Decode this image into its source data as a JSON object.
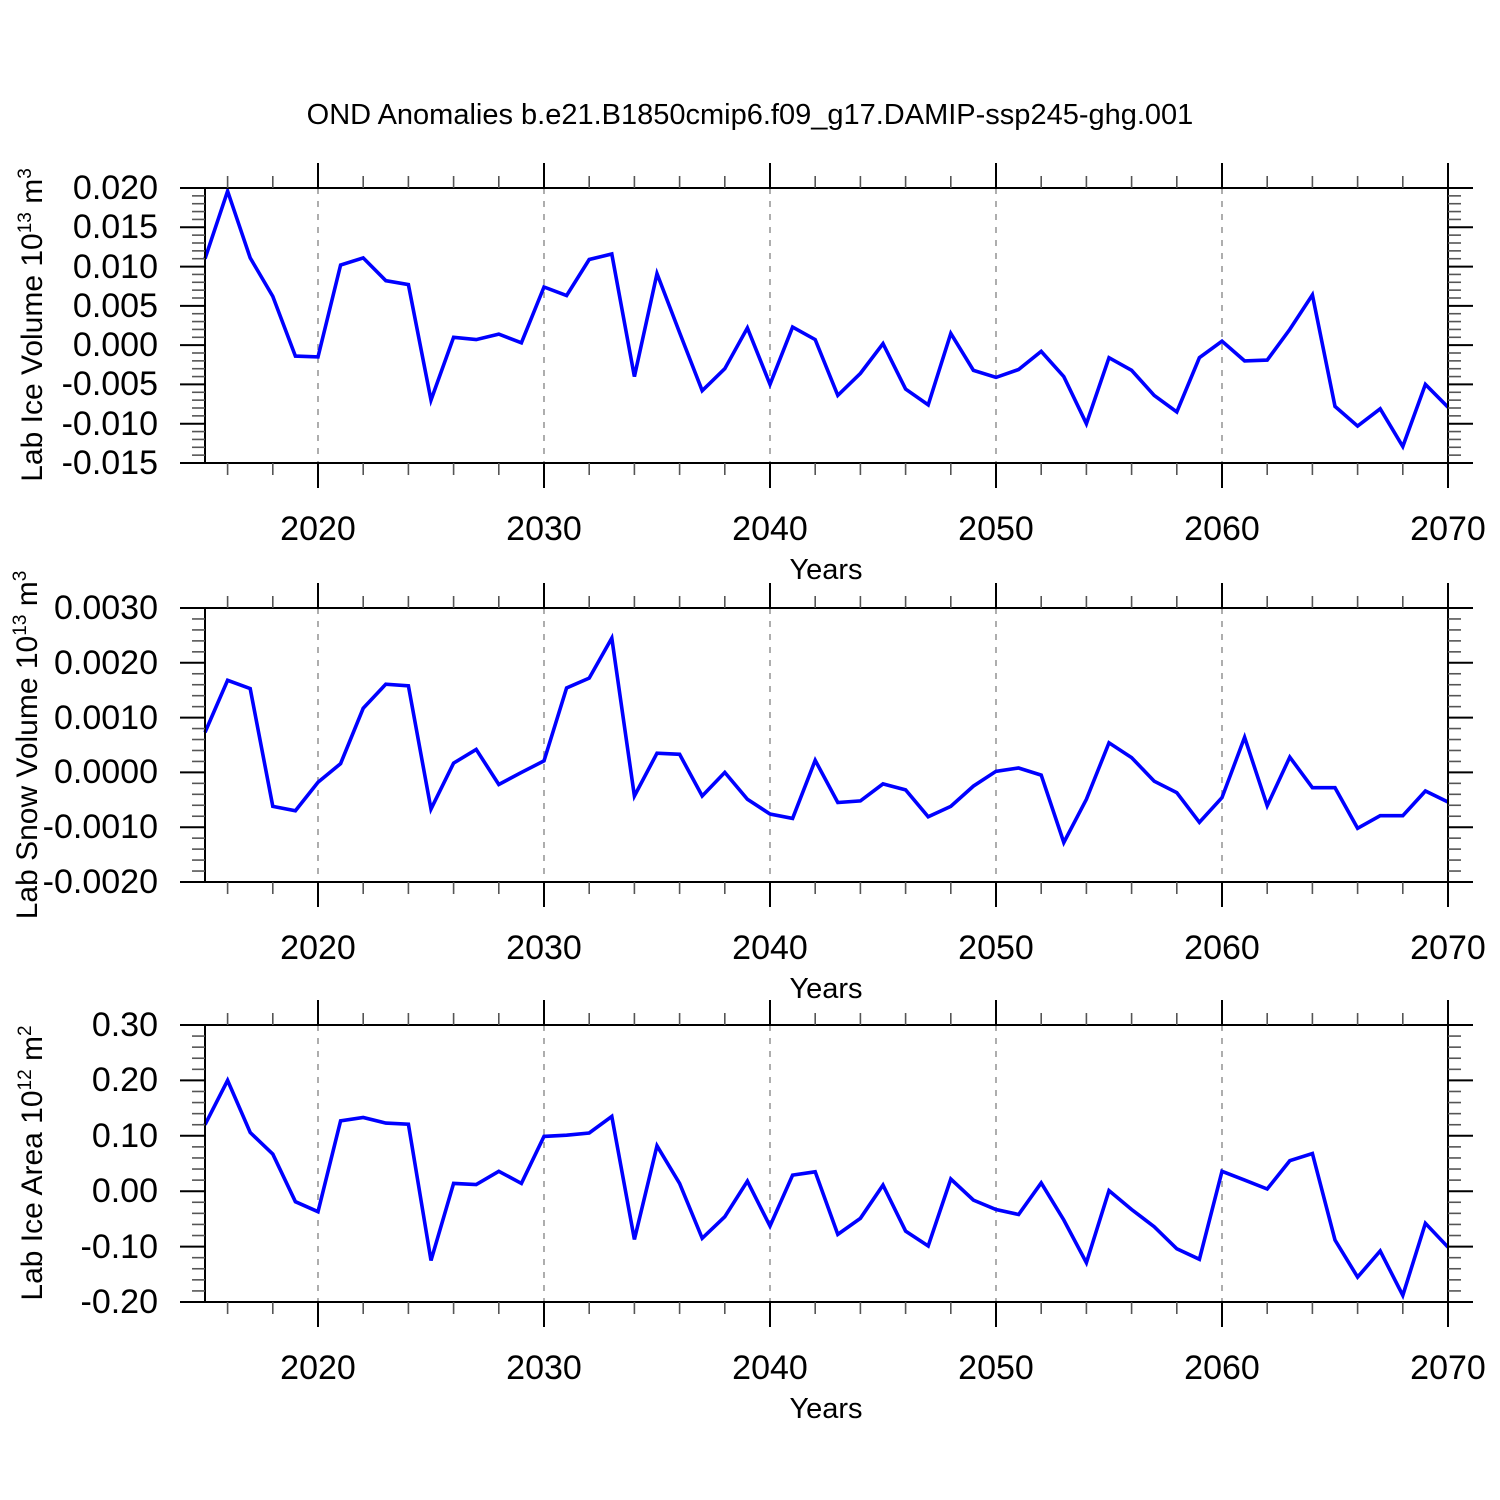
{
  "title": "OND Anomalies b.e21.B1850cmip6.f09_g17.DAMIP-ssp245-ghg.001",
  "xlabel": "Years",
  "line_color": "#0000ff",
  "grid_color": "#999999",
  "axis_color": "#000000",
  "years": [
    2015,
    2016,
    2017,
    2018,
    2019,
    2020,
    2021,
    2022,
    2023,
    2024,
    2025,
    2026,
    2027,
    2028,
    2029,
    2030,
    2031,
    2032,
    2033,
    2034,
    2035,
    2036,
    2037,
    2038,
    2039,
    2040,
    2041,
    2042,
    2043,
    2044,
    2045,
    2046,
    2047,
    2048,
    2049,
    2050,
    2051,
    2052,
    2053,
    2054,
    2055,
    2056,
    2057,
    2058,
    2059,
    2060,
    2061,
    2062,
    2063,
    2064,
    2065,
    2066,
    2067,
    2068,
    2069,
    2070
  ],
  "x_axis": {
    "range": [
      2015,
      2070
    ],
    "major_ticks": [
      2020,
      2030,
      2040,
      2050,
      2060,
      2070
    ],
    "major_tick_labels": [
      "2020",
      "2030",
      "2040",
      "2050",
      "2060",
      "2070"
    ],
    "minor_tick_step": 2,
    "gridlines_at": [
      2020,
      2030,
      2040,
      2050,
      2060
    ],
    "grid_style": "dashed"
  },
  "chart_data": [
    {
      "type": "line",
      "name": "lab-ice-volume",
      "ylabel": {
        "base": "Lab Ice Volume 10",
        "exponent": "13",
        "unit": " m",
        "unit_exponent": "3"
      },
      "ylim": [
        -0.015,
        0.02
      ],
      "y_major_values": [
        0.02,
        0.015,
        0.01,
        0.005,
        0.0,
        -0.005,
        -0.01,
        -0.015
      ],
      "y_major_tick_labels": [
        "0.020",
        "0.015",
        "0.010",
        "0.005",
        "0.000",
        "-0.005",
        "-0.010",
        "-0.015"
      ],
      "y_minor_step": 0.001,
      "values": [
        0.011,
        0.0196,
        0.0111,
        0.0062,
        -0.0014,
        -0.0015,
        0.0102,
        0.0111,
        0.0082,
        0.0077,
        -0.007,
        0.001,
        0.0007,
        0.0014,
        0.0003,
        0.0074,
        0.0063,
        0.0109,
        0.0116,
        -0.004,
        0.0091,
        0.0016,
        -0.0058,
        -0.003,
        0.0022,
        -0.005,
        0.0023,
        0.0007,
        -0.0064,
        -0.0036,
        0.0002,
        -0.0056,
        -0.0076,
        0.0015,
        -0.0032,
        -0.0041,
        -0.0031,
        -0.0008,
        -0.004,
        -0.01,
        -0.0016,
        -0.0032,
        -0.0064,
        -0.0085,
        -0.0016,
        0.0005,
        -0.002,
        -0.0019,
        0.002,
        0.0064,
        -0.0078,
        -0.0103,
        -0.0081,
        -0.0129,
        -0.005,
        -0.0079
      ]
    },
    {
      "type": "line",
      "name": "lab-snow-volume",
      "ylabel": {
        "base": "Lab Snow Volume 10",
        "exponent": "13",
        "unit": " m",
        "unit_exponent": "3"
      },
      "ylim": [
        -0.002,
        0.003
      ],
      "y_major_values": [
        0.003,
        0.002,
        0.001,
        0.0,
        -0.001,
        -0.002
      ],
      "y_major_tick_labels": [
        "0.0030",
        "0.0020",
        "0.0010",
        "0.0000",
        "-0.0010",
        "-0.0020"
      ],
      "y_minor_step": 0.0002,
      "values": [
        0.00073,
        0.00168,
        0.00153,
        -0.00062,
        -0.0007,
        -0.00018,
        0.00016,
        0.00117,
        0.00161,
        0.00158,
        -0.00067,
        0.00017,
        0.00042,
        -0.00022,
        0.0,
        0.00021,
        0.00154,
        0.00172,
        0.00245,
        -0.00043,
        0.00035,
        0.00033,
        -0.00043,
        0.0,
        -0.00049,
        -0.00076,
        -0.00084,
        0.00022,
        -0.00055,
        -0.00052,
        -0.00021,
        -0.00032,
        -0.00081,
        -0.00062,
        -0.00025,
        2e-05,
        8e-05,
        -5e-05,
        -0.00128,
        -0.00049,
        0.00054,
        0.00027,
        -0.00016,
        -0.00037,
        -0.00091,
        -0.00046,
        0.00064,
        -0.00061,
        0.00028,
        -0.00028,
        -0.00028,
        -0.00102,
        -0.00079,
        -0.00079,
        -0.00034,
        -0.00054
      ]
    },
    {
      "type": "line",
      "name": "lab-ice-area",
      "ylabel": {
        "base": "Lab Ice Area 10",
        "exponent": "12",
        "unit": " m",
        "unit_exponent": "2"
      },
      "ylim": [
        -0.2,
        0.3
      ],
      "y_major_values": [
        0.3,
        0.2,
        0.1,
        0.0,
        -0.1,
        -0.2
      ],
      "y_major_tick_labels": [
        "0.30",
        "0.20",
        "0.10",
        "0.00",
        "-0.10",
        "-0.20"
      ],
      "y_minor_step": 0.02,
      "values": [
        0.12,
        0.2,
        0.106,
        0.067,
        -0.019,
        -0.037,
        0.127,
        0.133,
        0.123,
        0.121,
        -0.125,
        0.014,
        0.012,
        0.036,
        0.014,
        0.099,
        0.101,
        0.105,
        0.135,
        -0.087,
        0.082,
        0.014,
        -0.085,
        -0.046,
        0.018,
        -0.063,
        0.029,
        0.035,
        -0.078,
        -0.049,
        0.011,
        -0.072,
        -0.099,
        0.022,
        -0.016,
        -0.033,
        -0.042,
        0.015,
        -0.052,
        -0.129,
        0.001,
        -0.033,
        -0.064,
        -0.104,
        -0.123,
        0.036,
        0.02,
        0.004,
        0.055,
        0.068,
        -0.088,
        -0.155,
        -0.108,
        -0.188,
        -0.058,
        -0.101
      ]
    }
  ]
}
